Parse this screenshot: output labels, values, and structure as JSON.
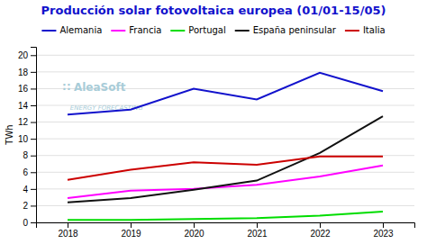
{
  "chart_data": {
    "type": "line",
    "title": "Producción solar fotovoltaica europea (01/01-15/05)",
    "y_label": "TWh",
    "x": [
      2018,
      2019,
      2020,
      2021,
      2022,
      2023
    ],
    "xlim": [
      2017.5,
      2023.5
    ],
    "xticks": [
      2018,
      2019,
      2020,
      2021,
      2022,
      2023
    ],
    "ylim": [
      0,
      21
    ],
    "yticks": [
      0,
      2,
      4,
      6,
      8,
      10,
      12,
      14,
      16,
      18,
      20
    ],
    "grid": true,
    "legend": "top",
    "series": [
      {
        "name": "Alemania",
        "color": "#1212cc",
        "values": [
          12.9,
          13.5,
          16.0,
          14.7,
          17.9,
          15.7
        ]
      },
      {
        "name": "Francia",
        "color": "#ff00ff",
        "values": [
          2.9,
          3.8,
          4.0,
          4.5,
          5.5,
          6.8
        ]
      },
      {
        "name": "Portugal",
        "color": "#00dd00",
        "values": [
          0.3,
          0.3,
          0.4,
          0.5,
          0.8,
          1.3
        ]
      },
      {
        "name": "España peninsular",
        "color": "#111111",
        "values": [
          2.4,
          2.9,
          3.9,
          5.0,
          8.3,
          12.7
        ]
      },
      {
        "name": "Italia",
        "color": "#cc0000",
        "values": [
          5.1,
          6.3,
          7.2,
          6.9,
          7.9,
          7.9
        ]
      }
    ],
    "annotations": [
      "∷ AleaSoft",
      "ENERGY FORECASTING"
    ]
  }
}
